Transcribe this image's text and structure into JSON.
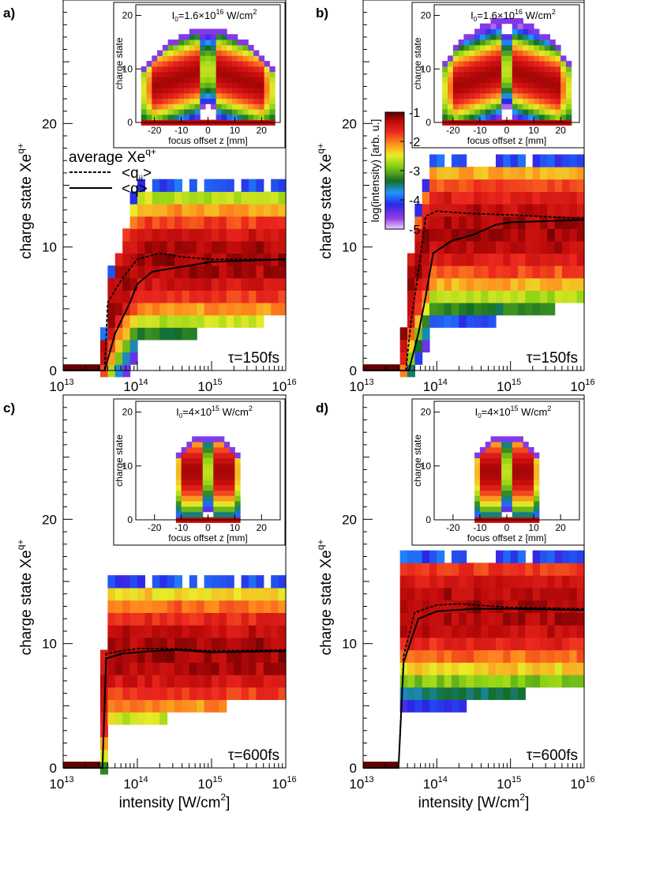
{
  "colorbar": {
    "label": "log(intensity) [arb. u.]",
    "ticks": [
      "-1",
      "-2",
      "-3",
      "-4",
      "-5"
    ]
  },
  "legend": {
    "title": "average Xe",
    "title_sup": "q+",
    "entries": [
      {
        "label": "<q",
        "label_sub": "ii",
        "label_end": ">",
        "style": "dashed"
      },
      {
        "label": "<q>",
        "style": "solid"
      }
    ]
  },
  "chart_data": [
    {
      "panel": "a)",
      "type": "heatmap",
      "tau_label": "τ=150fs",
      "xlabel": "",
      "ylabel": "charge state Xe",
      "ylabel_sup": "q+",
      "x_scale": "log",
      "xlim": [
        10000000000000.0,
        1e+16
      ],
      "ylim": [
        0,
        30
      ],
      "x_ticks": [
        {
          "base": "10",
          "exp": "13"
        },
        {
          "base": "10",
          "exp": "14"
        },
        {
          "base": "10",
          "exp": "15"
        },
        {
          "base": "10",
          "exp": "16"
        }
      ],
      "y_ticks": [
        "0",
        "10",
        "20"
      ],
      "onset_log": 13.55,
      "sat_log": 14.0,
      "qmax": 15,
      "qlo": 3,
      "center": 9,
      "spread": 2.8,
      "series": [
        {
          "name": "<qii>",
          "style": "dashed",
          "points": [
            [
              13.0,
              0
            ],
            [
              13.56,
              0
            ],
            [
              13.6,
              5.5
            ],
            [
              13.8,
              7.5
            ],
            [
              14.0,
              9.0
            ],
            [
              14.3,
              9.5
            ],
            [
              14.6,
              9.2
            ],
            [
              15.0,
              9.0
            ],
            [
              16.0,
              9.0
            ]
          ]
        },
        {
          "name": "<q>",
          "style": "solid",
          "points": [
            [
              13.0,
              0
            ],
            [
              13.56,
              0
            ],
            [
              13.7,
              3
            ],
            [
              13.9,
              5.5
            ],
            [
              14.0,
              7.0
            ],
            [
              14.2,
              8.0
            ],
            [
              14.6,
              8.4
            ],
            [
              15.0,
              8.8
            ],
            [
              16.0,
              9.0
            ]
          ]
        }
      ],
      "inset": {
        "label": "I",
        "label_sub": "0",
        "label_mid": "=1.6×10",
        "label_sup": "16",
        "label_end": " W/cm",
        "label_sup2": "2",
        "xlabel": "focus offset z  [mm]",
        "ylabel": "charge state",
        "x_ticks": [
          "-20",
          "-10",
          "0",
          "10",
          "20"
        ],
        "y_ticks": [
          "0",
          "10",
          "20"
        ],
        "xlim": [
          -27,
          27
        ],
        "ylim": [
          0,
          22
        ],
        "zmax": 25,
        "qtop": 17,
        "shape": "wide"
      }
    },
    {
      "panel": "b)",
      "type": "heatmap",
      "tau_label": "τ=150fs",
      "xlabel": "",
      "ylabel": "charge state Xe",
      "ylabel_sup": "q+",
      "x_scale": "log",
      "xlim": [
        10000000000000.0,
        1e+16
      ],
      "ylim": [
        0,
        30
      ],
      "x_ticks": [
        {
          "base": "10",
          "exp": "13"
        },
        {
          "base": "10",
          "exp": "14"
        },
        {
          "base": "10",
          "exp": "15"
        },
        {
          "base": "10",
          "exp": "16"
        }
      ],
      "y_ticks": [
        "0",
        "10",
        "20"
      ],
      "onset_log": 13.55,
      "sat_log": 13.95,
      "qmax": 17,
      "qlo": 4,
      "center": 11.5,
      "spread": 3.0,
      "series": [
        {
          "name": "<qii>",
          "style": "dashed",
          "points": [
            [
              13.0,
              0
            ],
            [
              13.58,
              0
            ],
            [
              13.65,
              4
            ],
            [
              13.75,
              8
            ],
            [
              13.85,
              12.5
            ],
            [
              14.0,
              12.9
            ],
            [
              14.5,
              12.7
            ],
            [
              15.0,
              12.6
            ],
            [
              16.0,
              12.3
            ]
          ]
        },
        {
          "name": "<q>",
          "style": "solid",
          "points": [
            [
              13.0,
              0
            ],
            [
              13.62,
              0
            ],
            [
              13.75,
              3
            ],
            [
              13.85,
              6
            ],
            [
              13.95,
              9.5
            ],
            [
              14.2,
              10.5
            ],
            [
              14.5,
              11.0
            ],
            [
              14.8,
              11.8
            ],
            [
              15.0,
              12.0
            ],
            [
              16.0,
              12.2
            ]
          ]
        }
      ],
      "inset": {
        "label": "I",
        "label_sub": "0",
        "label_mid": "=1.6×10",
        "label_sup": "16",
        "label_end": " W/cm",
        "label_sup2": "2",
        "xlabel": "focus offset z  [mm]",
        "ylabel": "charge state",
        "x_ticks": [
          "-20",
          "-10",
          "0",
          "10",
          "20"
        ],
        "y_ticks": [
          "0",
          "10",
          "20"
        ],
        "xlim": [
          -27,
          27
        ],
        "ylim": [
          0,
          22
        ],
        "zmax": 24,
        "qtop": 19,
        "shape": "wide"
      }
    },
    {
      "panel": "c)",
      "type": "heatmap",
      "tau_label": "τ=600fs",
      "xlabel": "intensity [W/cm",
      "xlabel_sup": "2",
      "xlabel_end": "]",
      "ylabel": "charge state Xe",
      "ylabel_sup": "q+",
      "x_scale": "log",
      "xlim": [
        10000000000000.0,
        1e+16
      ],
      "ylim": [
        0,
        30
      ],
      "x_ticks": [
        {
          "base": "10",
          "exp": "13"
        },
        {
          "base": "10",
          "exp": "14"
        },
        {
          "base": "10",
          "exp": "15"
        },
        {
          "base": "10",
          "exp": "16"
        }
      ],
      "y_ticks": [
        "0",
        "10",
        "20"
      ],
      "onset_log": 13.53,
      "sat_log": 13.58,
      "qmax": 15,
      "qlo": 4,
      "center": 9.2,
      "spread": 3.0,
      "series": [
        {
          "name": "<qii>",
          "style": "dashed",
          "points": [
            [
              13.0,
              0
            ],
            [
              13.53,
              0
            ],
            [
              13.58,
              9.2
            ],
            [
              14.0,
              9.6
            ],
            [
              14.5,
              9.6
            ],
            [
              15.0,
              9.4
            ],
            [
              16.0,
              9.5
            ]
          ]
        },
        {
          "name": "<q>",
          "style": "solid",
          "points": [
            [
              13.0,
              0
            ],
            [
              13.53,
              0
            ],
            [
              13.58,
              8.8
            ],
            [
              13.8,
              9.2
            ],
            [
              14.2,
              9.4
            ],
            [
              14.5,
              9.5
            ],
            [
              15.0,
              9.3
            ],
            [
              16.0,
              9.4
            ]
          ]
        }
      ],
      "inset": {
        "label": "I",
        "label_sub": "0",
        "label_mid": "=4×10",
        "label_sup": "15",
        "label_end": " W/cm",
        "label_sup2": "2",
        "xlabel": "focus offset z  [mm]",
        "ylabel": "charge state",
        "x_ticks": [
          "-20",
          "-10",
          "0",
          "10",
          "20"
        ],
        "y_ticks": [
          "0",
          "10",
          "20"
        ],
        "xlim": [
          -27,
          27
        ],
        "ylim": [
          0,
          22
        ],
        "zmax": 12,
        "qtop": 15,
        "shape": "box"
      }
    },
    {
      "panel": "d)",
      "type": "heatmap",
      "tau_label": "τ=600fs",
      "xlabel": "intensity [W/cm",
      "xlabel_sup": "2",
      "xlabel_end": "]",
      "ylabel": "charge state Xe",
      "ylabel_sup": "q+",
      "x_scale": "log",
      "xlim": [
        10000000000000.0,
        1e+16
      ],
      "ylim": [
        0,
        30
      ],
      "x_ticks": [
        {
          "base": "10",
          "exp": "13"
        },
        {
          "base": "10",
          "exp": "14"
        },
        {
          "base": "10",
          "exp": "15"
        },
        {
          "base": "10",
          "exp": "16"
        }
      ],
      "y_ticks": [
        "0",
        "10",
        "20"
      ],
      "onset_log": 13.48,
      "sat_log": 13.55,
      "qmax": 17,
      "qlo": 5,
      "center": 12.8,
      "spread": 3.0,
      "series": [
        {
          "name": "<qii>",
          "style": "dashed",
          "points": [
            [
              13.0,
              0
            ],
            [
              13.48,
              0
            ],
            [
              13.55,
              9
            ],
            [
              13.7,
              12.5
            ],
            [
              14.0,
              13.1
            ],
            [
              14.3,
              13.2
            ],
            [
              15.0,
              12.9
            ],
            [
              16.0,
              12.8
            ]
          ]
        },
        {
          "name": "<q>",
          "style": "solid",
          "points": [
            [
              13.0,
              0
            ],
            [
              13.48,
              0
            ],
            [
              13.55,
              8.5
            ],
            [
              13.75,
              12.0
            ],
            [
              14.0,
              12.6
            ],
            [
              14.5,
              12.8
            ],
            [
              15.0,
              12.8
            ],
            [
              16.0,
              12.7
            ]
          ]
        }
      ],
      "inset": {
        "label": "I",
        "label_sub": "0",
        "label_mid": "=4×10",
        "label_sup": "15",
        "label_end": " W/cm",
        "label_sup2": "2",
        "xlabel": "focus offset z  [mm]",
        "ylabel": "charge state",
        "x_ticks": [
          "-20",
          "-10",
          "0",
          "10",
          "20"
        ],
        "y_ticks": [
          "0",
          "10",
          "20"
        ],
        "xlim": [
          -27,
          27
        ],
        "ylim": [
          0,
          22
        ],
        "zmax": 12,
        "qtop": 15,
        "shape": "box"
      }
    }
  ]
}
